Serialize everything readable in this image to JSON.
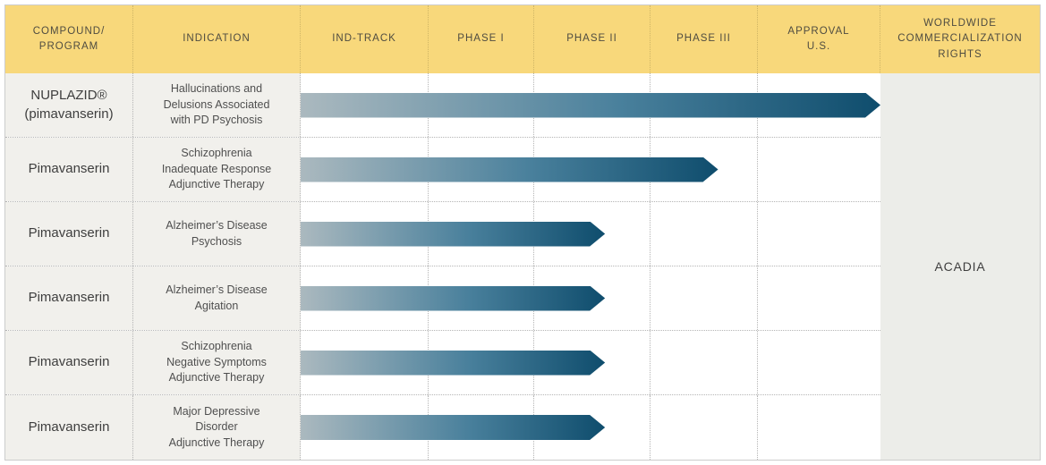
{
  "header": {
    "columns": [
      {
        "label": "COMPOUND/\nPROGRAM"
      },
      {
        "label": "INDICATION"
      },
      {
        "label": "IND-TRACK"
      },
      {
        "label": "PHASE I"
      },
      {
        "label": "PHASE II"
      },
      {
        "label": "PHASE III"
      },
      {
        "label": "APPROVAL\nU.S."
      },
      {
        "label": "WORLDWIDE\nCOMMERCIALIZATION\nRIGHTS"
      }
    ]
  },
  "rights": {
    "label": "ACADIA"
  },
  "rows": [
    {
      "compound": "NUPLAZID®\n(pimavanserin)",
      "indication": "Hallucinations and\nDelusions Associated\nwith PD Psychosis",
      "progress_pct": 100
    },
    {
      "compound": "Pimavanserin",
      "indication": "Schizophrenia\nInadequate Response\nAdjunctive Therapy",
      "progress_pct": 72
    },
    {
      "compound": "Pimavanserin",
      "indication": "Alzheimer’s Disease\nPsychosis",
      "progress_pct": 52.5
    },
    {
      "compound": "Pimavanserin",
      "indication": "Alzheimer’s Disease\nAgitation",
      "progress_pct": 52.5
    },
    {
      "compound": "Pimavanserin",
      "indication": "Schizophrenia\nNegative Symptoms\nAdjunctive Therapy",
      "progress_pct": 52.5
    },
    {
      "compound": "Pimavanserin",
      "indication": "Major Depressive\nDisorder\nAdjunctive Therapy",
      "progress_pct": 52.5
    }
  ],
  "colors": {
    "header_bg": "#f8d87b",
    "header_text": "#4f4c41",
    "header_grid": "#cfb565",
    "cell_bg": "#f1f0ec",
    "rights_bg": "#ecede9",
    "arrow_start": "#abb9bf",
    "arrow_mid": "#49809c",
    "arrow_end": "#0f4d6d",
    "grid_line": "#b5b5b5",
    "border": "#cccccc",
    "text_dark": "#3e3e3e",
    "text_indication": "#4f4f4f"
  },
  "chart_data": {
    "type": "bar",
    "title": "Clinical development pipeline",
    "stages_axis": [
      "IND-TRACK",
      "PHASE I",
      "PHASE II",
      "PHASE III",
      "APPROVAL U.S."
    ],
    "categories": [
      "NUPLAZID® (pimavanserin) — Hallucinations and Delusions Associated with PD Psychosis",
      "Pimavanserin — Schizophrenia Inadequate Response Adjunctive Therapy",
      "Pimavanserin — Alzheimer’s Disease Psychosis",
      "Pimavanserin — Alzheimer’s Disease Agitation",
      "Pimavanserin — Schizophrenia Negative Symptoms Adjunctive Therapy",
      "Pimavanserin — Major Depressive Disorder Adjunctive Therapy"
    ],
    "values": [
      1.0,
      0.72,
      0.525,
      0.525,
      0.525,
      0.525
    ],
    "stage_reached": [
      "Approval U.S.",
      "Phase III",
      "Phase II",
      "Phase II",
      "Phase II",
      "Phase II"
    ],
    "annotations": [
      "Worldwide commercialization rights: ACADIA"
    ],
    "legend_position": "none",
    "grid": "dotted"
  }
}
